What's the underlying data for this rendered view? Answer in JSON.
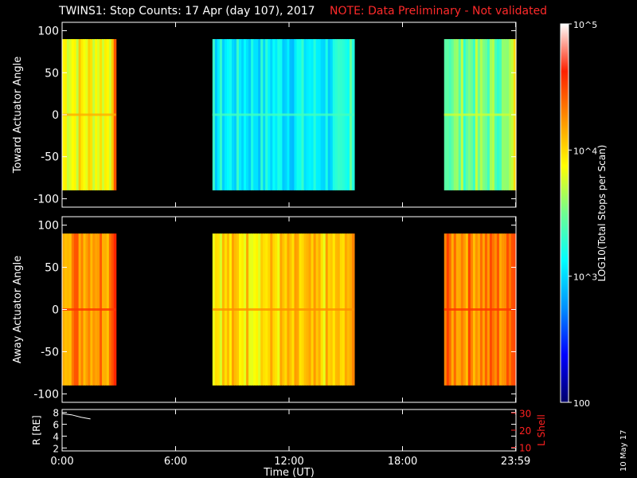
{
  "title": "TWINS1: Stop Counts: 17 Apr (day 107), 2017",
  "note": "NOTE: Data Preliminary - Not validated",
  "date_stamp": "10 May 17",
  "colors": {
    "background": "#000000",
    "axis": "#ffffff",
    "note": "#ff2a2a",
    "lshell": "#ff2020"
  },
  "chart_data": [
    {
      "type": "heatmap",
      "panel": "toward",
      "ylabel": "Toward Actuator Angle",
      "ylim": [
        -110,
        110
      ],
      "yticks": [
        100,
        50,
        0,
        -50,
        -100
      ],
      "xlim": [
        0,
        24
      ],
      "data_extent_y": [
        -90,
        90
      ],
      "intervals_hours": [
        [
          0,
          2.85
        ],
        [
          7.95,
          15.45
        ],
        [
          20.2,
          24
        ]
      ],
      "value_scale": "log10",
      "typical_log_counts": {
        "0-2.85": 3.9,
        "7.95-15.45": 3.1,
        "20.2-24": 3.5
      }
    },
    {
      "type": "heatmap",
      "panel": "away",
      "ylabel": "Away Actuator Angle",
      "ylim": [
        -110,
        110
      ],
      "yticks": [
        100,
        50,
        0,
        -50,
        -100
      ],
      "xlim": [
        0,
        24
      ],
      "data_extent_y": [
        -90,
        90
      ],
      "intervals_hours": [
        [
          0,
          2.85
        ],
        [
          7.95,
          15.45
        ],
        [
          20.2,
          24
        ]
      ],
      "value_scale": "log10",
      "typical_log_counts": {
        "0-2.85": 4.3,
        "7.95-15.45": 4.0,
        "20.2-24": 4.3
      }
    },
    {
      "type": "line",
      "panel": "ephemeris",
      "ylabel": "R [RE]",
      "ylim": [
        1.5,
        8.5
      ],
      "yticks": [
        8,
        6,
        4,
        2
      ],
      "right_ylabel": "L Shell",
      "right_yticks": [
        30,
        20,
        10
      ],
      "right_ylim": [
        8,
        32
      ],
      "x": [
        0,
        0.5,
        1.0,
        1.5
      ],
      "values": [
        7.8,
        7.6,
        7.2,
        6.9
      ]
    }
  ],
  "xaxis": {
    "label": "Time (UT)",
    "ticks": [
      {
        "hour": 0,
        "label": "0:00"
      },
      {
        "hour": 6,
        "label": "6:00"
      },
      {
        "hour": 12,
        "label": "12:00"
      },
      {
        "hour": 18,
        "label": "18:00"
      },
      {
        "hour": 23.983,
        "label": "23:59"
      }
    ]
  },
  "colorbar": {
    "label": "LOG10(Total Stops per Scan)",
    "min": 100,
    "max": 100000,
    "ticks": [
      {
        "value": 100000,
        "label": "10^5"
      },
      {
        "value": 10000,
        "label": "10^4"
      },
      {
        "value": 1000,
        "label": "10^3"
      },
      {
        "value": 100,
        "label": "100"
      }
    ],
    "colormap": [
      "#00006a",
      "#0000ff",
      "#0090ff",
      "#00ffff",
      "#70ff90",
      "#ffff00",
      "#ff9000",
      "#ff2000",
      "#ffffff"
    ]
  }
}
